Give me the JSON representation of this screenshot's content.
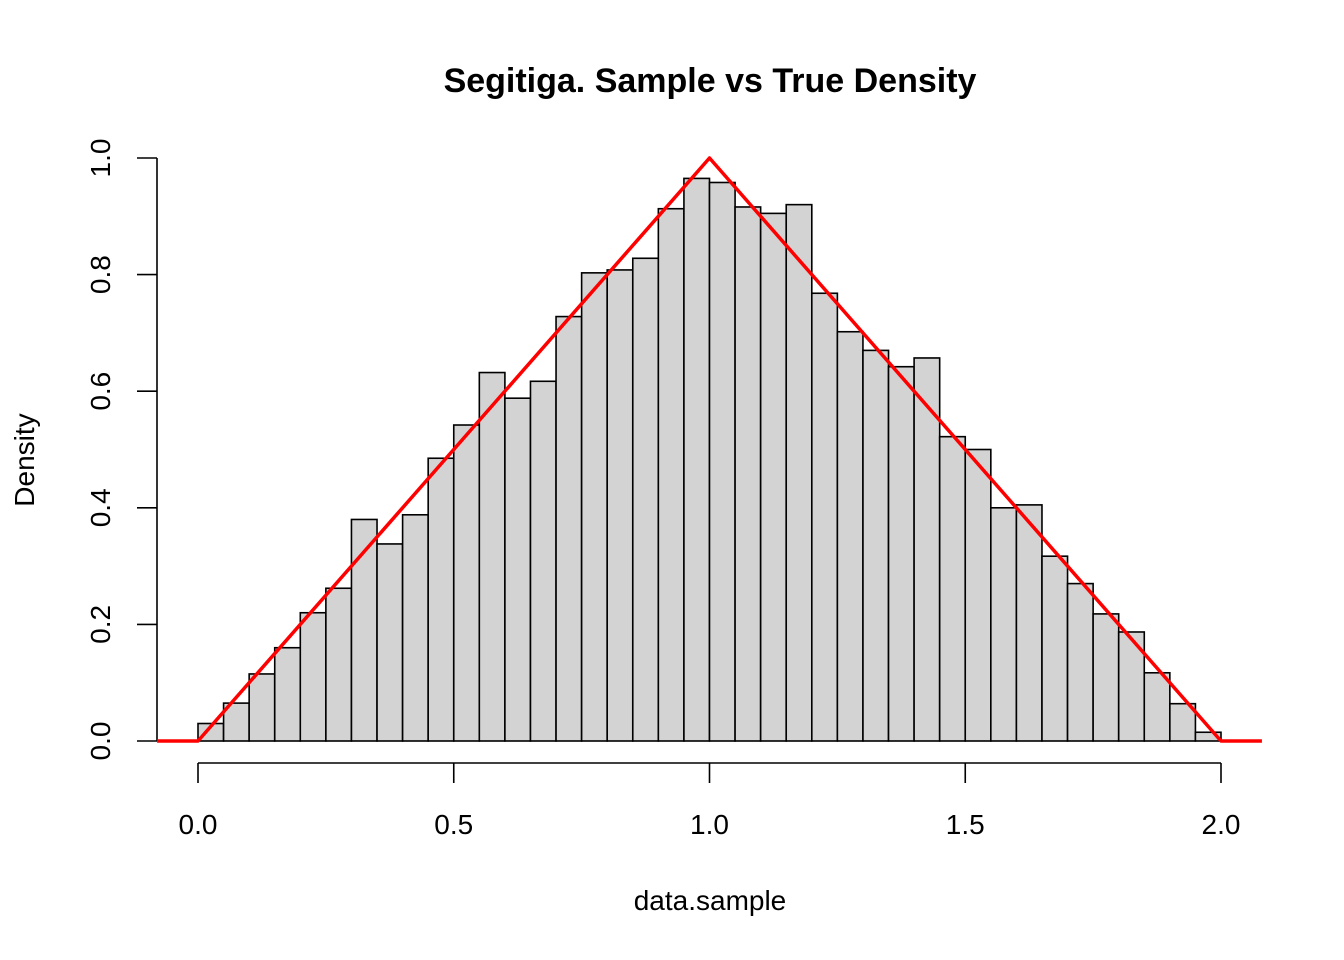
{
  "chart_data": {
    "type": "bar",
    "title": "Segitiga. Sample vs True Density",
    "xlabel": "data.sample",
    "ylabel": "Density",
    "xlim": [
      -0.08,
      2.08
    ],
    "ylim": [
      0,
      1.0
    ],
    "xticks": [
      0.0,
      0.5,
      1.0,
      1.5,
      2.0
    ],
    "xtick_labels": [
      "0.0",
      "0.5",
      "1.0",
      "1.5",
      "2.0"
    ],
    "yticks": [
      0.0,
      0.2,
      0.4,
      0.6,
      0.8,
      1.0
    ],
    "ytick_labels": [
      "0.0",
      "0.2",
      "0.4",
      "0.6",
      "0.8",
      "1.0"
    ],
    "histogram": {
      "bin_width": 0.05,
      "bin_start": 0.0,
      "values": [
        0.03,
        0.065,
        0.115,
        0.16,
        0.22,
        0.262,
        0.38,
        0.338,
        0.388,
        0.485,
        0.542,
        0.632,
        0.588,
        0.617,
        0.728,
        0.803,
        0.808,
        0.828,
        0.913,
        0.965,
        0.958,
        0.916,
        0.905,
        0.92,
        0.768,
        0.702,
        0.67,
        0.642,
        0.657,
        0.522,
        0.5,
        0.4,
        0.405,
        0.317,
        0.27,
        0.218,
        0.187,
        0.117,
        0.064,
        0.015
      ],
      "fill_color": "#d3d3d3"
    },
    "series": [
      {
        "name": "True Density",
        "color": "#ff0000",
        "x": [
          -0.08,
          0.0,
          1.0,
          2.0,
          2.08
        ],
        "y": [
          0.0,
          0.0,
          1.0,
          0.0,
          0.0
        ]
      }
    ]
  }
}
